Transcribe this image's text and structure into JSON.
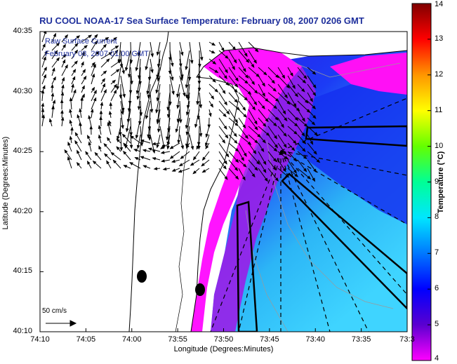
{
  "title": "RU COOL  NOAA-17  Sea Surface Temperature:  February 08, 2007 0206 GMT",
  "legend": {
    "line1": "Raw Surface Current",
    "line2": "February 08, 2007 01:00 GMT",
    "scale_label": "50 cm/s"
  },
  "colorbar": {
    "label": "Temperature (°C)",
    "min": 4,
    "max": 14,
    "ticks": [
      "14",
      "13",
      "12",
      "11",
      "10",
      "9",
      "8",
      "7",
      "6",
      "5",
      "4"
    ],
    "colors": [
      "#ff00ff",
      "#5a00d0",
      "#0000ff",
      "#0078ff",
      "#00e6ff",
      "#00ff96",
      "#64ff00",
      "#ffff00",
      "#ff9600",
      "#ff0000",
      "#800000"
    ]
  },
  "chart_data": {
    "type": "heatmap",
    "title": "RU COOL  NOAA-17  Sea Surface Temperature:  February 08, 2007 0206 GMT",
    "xlabel": "Longitude (Degrees:Minutes)",
    "ylabel": "Latitude (Degrees:Minutes)",
    "x_ticks": [
      "74:10",
      "74:05",
      "74:00",
      "73:55",
      "73:50",
      "73:45",
      "73:40",
      "73:35",
      "73:3"
    ],
    "y_ticks": [
      "40:35",
      "40:30",
      "40:25",
      "40:20",
      "40:15",
      "40:10"
    ],
    "xlim": [
      -74.1667,
      -73.5
    ],
    "ylim": [
      40.1667,
      40.5833
    ],
    "value_range_c": [
      4,
      14
    ],
    "grid": false,
    "colorbar_title": "Temperature (°C)"
  }
}
